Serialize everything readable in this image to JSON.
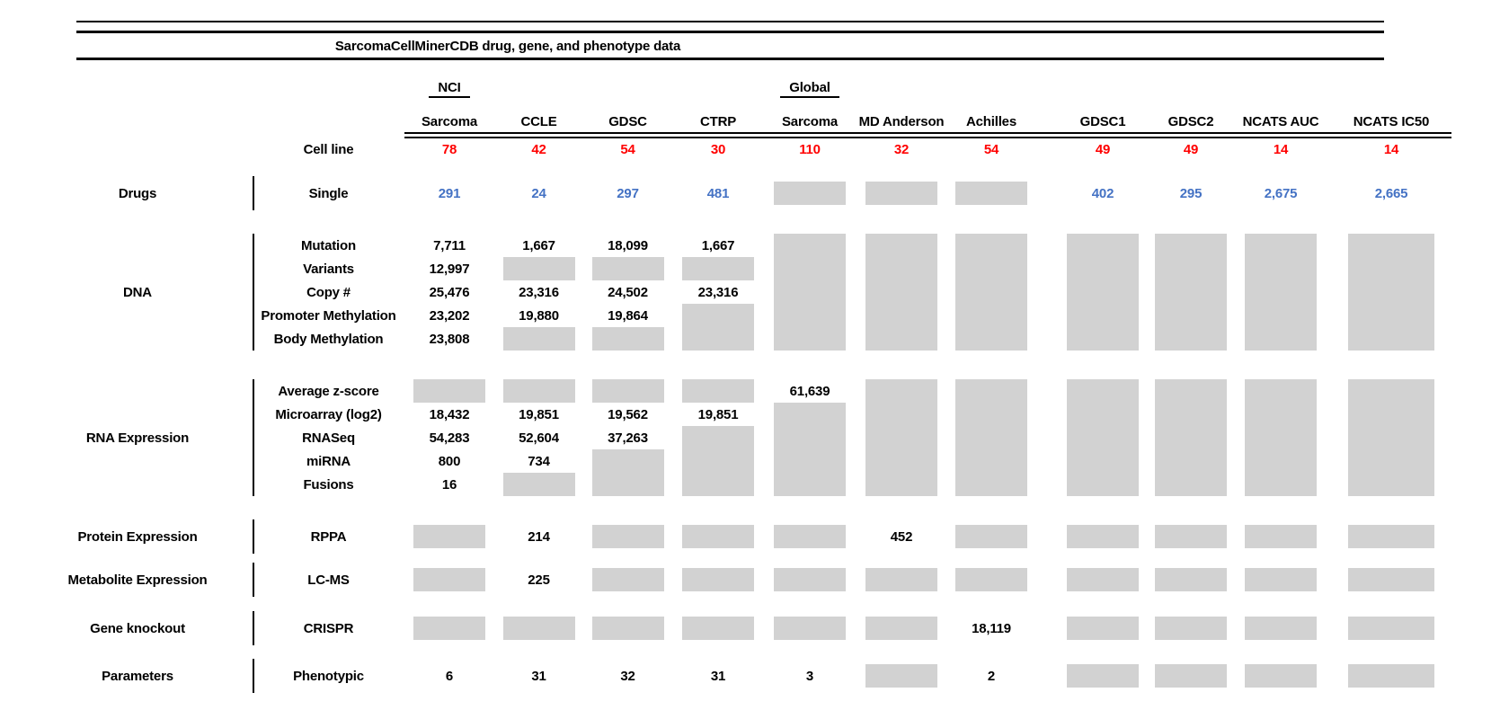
{
  "colors": {
    "red": "#ff0000",
    "blue": "#4472c4",
    "missing_gray": "#d2d2d2"
  },
  "chart_data": {
    "type": "table",
    "title": "SarcomaCellMinerCDB drug, gene, and phenotype data",
    "columns": [
      {
        "group": "NCI",
        "label": "Sarcoma"
      },
      {
        "label": "CCLE"
      },
      {
        "label": "GDSC"
      },
      {
        "label": "CTRP"
      },
      {
        "group": "Global",
        "label": "Sarcoma"
      },
      {
        "label": "MD Anderson"
      },
      {
        "label": "Achilles"
      },
      {
        "label": "GDSC1"
      },
      {
        "label": "GDSC2"
      },
      {
        "label": "NCATS AUC"
      },
      {
        "label": "NCATS IC50"
      }
    ],
    "cell_line": {
      "label": "Cell line",
      "values": [
        "78",
        "42",
        "54",
        "30",
        "110",
        "32",
        "54",
        "49",
        "49",
        "14",
        "14"
      ]
    },
    "sections": [
      {
        "category": "Drugs",
        "rows": [
          {
            "label": "Single",
            "color": "blue",
            "values": [
              "291",
              "24",
              "297",
              "481",
              null,
              null,
              null,
              "402",
              "295",
              "2,675",
              "2,665"
            ]
          }
        ]
      },
      {
        "category": "DNA",
        "rows": [
          {
            "label": "Mutation",
            "values": [
              "7,711",
              "1,667",
              "18,099",
              "1,667",
              null,
              null,
              null,
              null,
              null,
              null,
              null
            ]
          },
          {
            "label": "Variants",
            "values": [
              "12,997",
              null,
              null,
              null,
              null,
              null,
              null,
              null,
              null,
              null,
              null
            ]
          },
          {
            "label": "Copy #",
            "values": [
              "25,476",
              "23,316",
              "24,502",
              "23,316",
              null,
              null,
              null,
              null,
              null,
              null,
              null
            ]
          },
          {
            "label": "Promoter Methylation",
            "values": [
              "23,202",
              "19,880",
              "19,864",
              null,
              null,
              null,
              null,
              null,
              null,
              null,
              null
            ]
          },
          {
            "label": "Body Methylation",
            "values": [
              "23,808",
              null,
              null,
              null,
              null,
              null,
              null,
              null,
              null,
              null,
              null
            ]
          }
        ]
      },
      {
        "category": "RNA Expression",
        "rows": [
          {
            "label": "Average z-score",
            "values": [
              null,
              null,
              null,
              null,
              "61,639",
              null,
              null,
              null,
              null,
              null,
              null
            ]
          },
          {
            "label": "Microarray (log2)",
            "values": [
              "18,432",
              "19,851",
              "19,562",
              "19,851",
              null,
              null,
              null,
              null,
              null,
              null,
              null
            ]
          },
          {
            "label": "RNASeq",
            "values": [
              "54,283",
              "52,604",
              "37,263",
              null,
              null,
              null,
              null,
              null,
              null,
              null,
              null
            ]
          },
          {
            "label": "miRNA",
            "values": [
              "800",
              "734",
              null,
              null,
              null,
              null,
              null,
              null,
              null,
              null,
              null
            ]
          },
          {
            "label": "Fusions",
            "values": [
              "16",
              null,
              null,
              null,
              null,
              null,
              null,
              null,
              null,
              null,
              null
            ]
          }
        ]
      },
      {
        "category": "Protein Expression",
        "rows": [
          {
            "label": "RPPA",
            "values": [
              null,
              "214",
              null,
              null,
              null,
              "452",
              null,
              null,
              null,
              null,
              null
            ]
          }
        ]
      },
      {
        "category": "Metabolite Expression",
        "rows": [
          {
            "label": "LC-MS",
            "values": [
              null,
              "225",
              null,
              null,
              null,
              null,
              null,
              null,
              null,
              null,
              null
            ]
          }
        ]
      },
      {
        "category": "Gene knockout",
        "rows": [
          {
            "label": "CRISPR",
            "values": [
              null,
              null,
              null,
              null,
              null,
              null,
              "18,119",
              null,
              null,
              null,
              null
            ]
          }
        ]
      },
      {
        "category": "Parameters",
        "rows": [
          {
            "label": "Phenotypic",
            "values": [
              "6",
              "31",
              "32",
              "31",
              "3",
              null,
              "2",
              null,
              null,
              null,
              null
            ]
          }
        ]
      }
    ]
  }
}
